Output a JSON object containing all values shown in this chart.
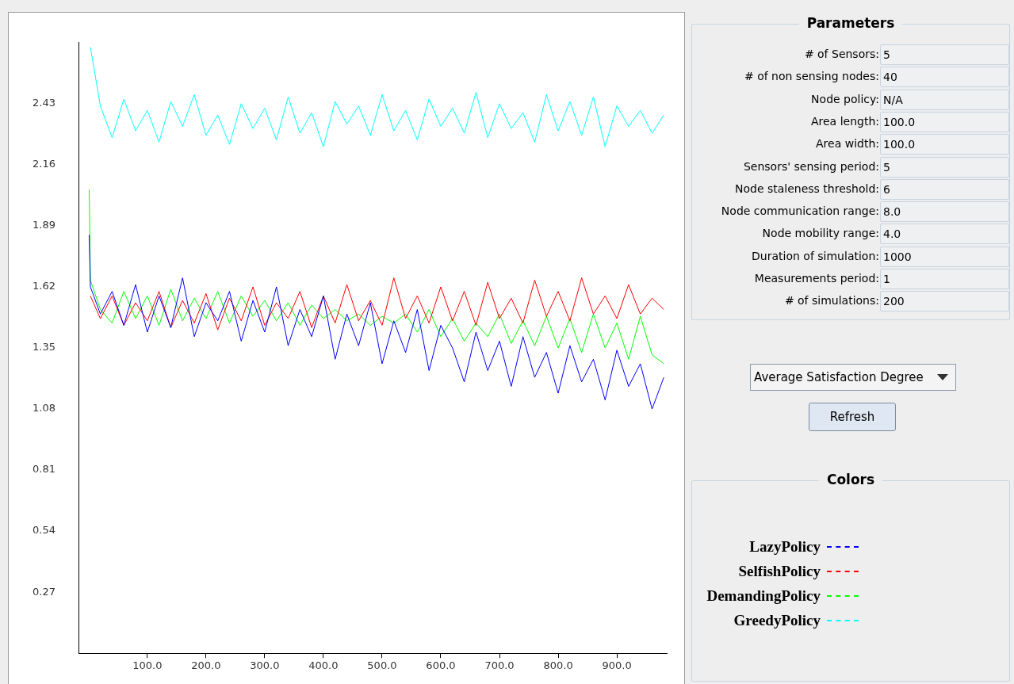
{
  "chart_data": {
    "type": "line",
    "x": [
      1,
      3,
      20,
      40,
      60,
      80,
      100,
      120,
      140,
      160,
      180,
      200,
      220,
      240,
      260,
      280,
      300,
      320,
      340,
      360,
      380,
      400,
      420,
      440,
      460,
      480,
      500,
      520,
      540,
      560,
      580,
      600,
      620,
      640,
      660,
      680,
      700,
      720,
      740,
      760,
      780,
      800,
      820,
      840,
      860,
      880,
      900,
      920,
      940,
      960,
      980
    ],
    "series": [
      {
        "name": "LazyPolicy",
        "color": "#0000ff",
        "values": [
          1.85,
          1.62,
          1.5,
          1.6,
          1.45,
          1.63,
          1.42,
          1.58,
          1.44,
          1.66,
          1.4,
          1.55,
          1.47,
          1.6,
          1.38,
          1.56,
          1.42,
          1.62,
          1.36,
          1.52,
          1.4,
          1.58,
          1.3,
          1.5,
          1.36,
          1.55,
          1.28,
          1.47,
          1.33,
          1.52,
          1.25,
          1.45,
          1.35,
          1.2,
          1.42,
          1.25,
          1.38,
          1.18,
          1.4,
          1.22,
          1.33,
          1.15,
          1.36,
          1.2,
          1.3,
          1.12,
          1.34,
          1.18,
          1.28,
          1.08,
          1.22
        ]
      },
      {
        "name": "SelfishPolicy",
        "color": "#ff0000",
        "values": [
          null,
          1.58,
          1.48,
          1.58,
          1.45,
          1.55,
          1.47,
          1.6,
          1.44,
          1.56,
          1.46,
          1.59,
          1.43,
          1.57,
          1.47,
          1.62,
          1.45,
          1.55,
          1.48,
          1.6,
          1.44,
          1.58,
          1.46,
          1.63,
          1.47,
          1.56,
          1.45,
          1.66,
          1.48,
          1.58,
          1.46,
          1.62,
          1.47,
          1.6,
          1.45,
          1.64,
          1.48,
          1.57,
          1.46,
          1.65,
          1.49,
          1.6,
          1.47,
          1.66,
          1.5,
          1.58,
          1.48,
          1.63,
          1.5,
          1.57,
          1.52
        ]
      },
      {
        "name": "DemandingPolicy",
        "color": "#00ff00",
        "values": [
          2.05,
          1.65,
          1.52,
          1.46,
          1.6,
          1.48,
          1.58,
          1.45,
          1.61,
          1.47,
          1.57,
          1.48,
          1.6,
          1.46,
          1.58,
          1.49,
          1.56,
          1.47,
          1.55,
          1.45,
          1.54,
          1.48,
          1.52,
          1.47,
          1.5,
          1.45,
          1.49,
          1.46,
          1.5,
          1.42,
          1.52,
          1.4,
          1.48,
          1.38,
          1.46,
          1.4,
          1.5,
          1.37,
          1.47,
          1.36,
          1.49,
          1.35,
          1.48,
          1.33,
          1.5,
          1.35,
          1.46,
          1.3,
          1.49,
          1.32,
          1.28
        ]
      },
      {
        "name": "GreedyPolicy",
        "color": "#00ffff",
        "values": [
          null,
          2.68,
          2.42,
          2.28,
          2.45,
          2.31,
          2.4,
          2.26,
          2.44,
          2.33,
          2.47,
          2.29,
          2.38,
          2.25,
          2.43,
          2.32,
          2.41,
          2.27,
          2.46,
          2.3,
          2.39,
          2.24,
          2.44,
          2.34,
          2.42,
          2.29,
          2.47,
          2.31,
          2.4,
          2.27,
          2.45,
          2.33,
          2.41,
          2.3,
          2.48,
          2.28,
          2.43,
          2.32,
          2.39,
          2.26,
          2.47,
          2.31,
          2.44,
          2.29,
          2.46,
          2.24,
          2.42,
          2.33,
          2.4,
          2.3,
          2.38
        ]
      }
    ],
    "xlim": [
      -16,
      985
    ],
    "xticks": [
      {
        "value": 100,
        "label": "100.0"
      },
      {
        "value": 200,
        "label": "200.0"
      },
      {
        "value": 300,
        "label": "300.0"
      },
      {
        "value": 400,
        "label": "400.0"
      },
      {
        "value": 500,
        "label": "500.0"
      },
      {
        "value": 600,
        "label": "600.0"
      },
      {
        "value": 700,
        "label": "700.0"
      },
      {
        "value": 800,
        "label": "800.0"
      },
      {
        "value": 900,
        "label": "900.0"
      }
    ],
    "ylim": [
      0,
      2.7
    ],
    "yticks": [
      0.27,
      0.54,
      0.81,
      1.08,
      1.35,
      1.62,
      1.89,
      2.16,
      2.43
    ],
    "marker": "none",
    "line_style": "solid",
    "legend": "right",
    "legend_title": "Colors",
    "annotations": [
      "Parameters",
      "# of Sensors: 5",
      "# of non sensing nodes: 40",
      "Node policy: N/A",
      "Area length: 100.0",
      "Area width: 100.0",
      "Sensors' sensing period: 5",
      "Node staleness threshold: 6",
      "Node communication range: 8.0",
      "Node mobility range: 4.0",
      "Duration of simulation: 1000",
      "Measurements period: 1",
      "# of simulations: 200",
      "Average Satisfaction Degree",
      "Refresh"
    ]
  }
}
